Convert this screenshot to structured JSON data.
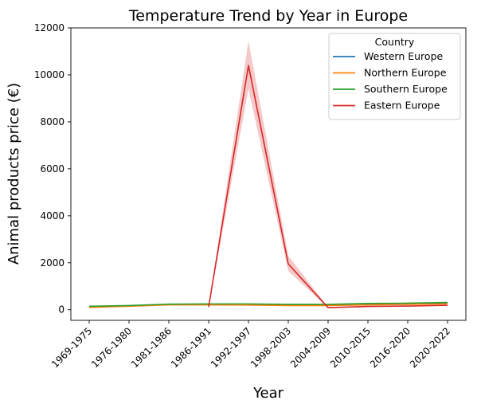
{
  "chart_data": {
    "type": "line",
    "title": "Temperature Trend by Year in Europe",
    "xlabel": "Year",
    "ylabel": "Animal products price (€)",
    "categories": [
      "1969-1975",
      "1976-1980",
      "1981-1986",
      "1986-1991",
      "1992-1997",
      "1998-2003",
      "2004-2009",
      "2010-2015",
      "2016-2020",
      "2020-2022"
    ],
    "ylim": [
      -450,
      12000
    ],
    "yticks": [
      0,
      2000,
      4000,
      6000,
      8000,
      10000,
      12000
    ],
    "grid": false,
    "legend": {
      "title": "Country",
      "placement": "top-right"
    },
    "series": [
      {
        "name": "Western Europe",
        "color": "#1f77b4",
        "values": [
          120,
          160,
          220,
          230,
          220,
          200,
          190,
          240,
          260,
          280
        ]
      },
      {
        "name": "Northern Europe",
        "color": "#ff7f0e",
        "values": [
          100,
          150,
          210,
          210,
          200,
          180,
          180,
          210,
          230,
          250
        ]
      },
      {
        "name": "Southern Europe",
        "color": "#2ca02c",
        "values": [
          150,
          180,
          240,
          250,
          250,
          230,
          230,
          270,
          280,
          310
        ]
      },
      {
        "name": "Eastern Europe",
        "color": "#d62728",
        "values": [
          null,
          null,
          null,
          120,
          10400,
          1950,
          90,
          140,
          160,
          190
        ],
        "ci_low": [
          null,
          null,
          null,
          100,
          9400,
          1650,
          70,
          120,
          140,
          170
        ],
        "ci_high": [
          null,
          null,
          null,
          140,
          11450,
          2300,
          110,
          160,
          180,
          210
        ]
      }
    ]
  }
}
